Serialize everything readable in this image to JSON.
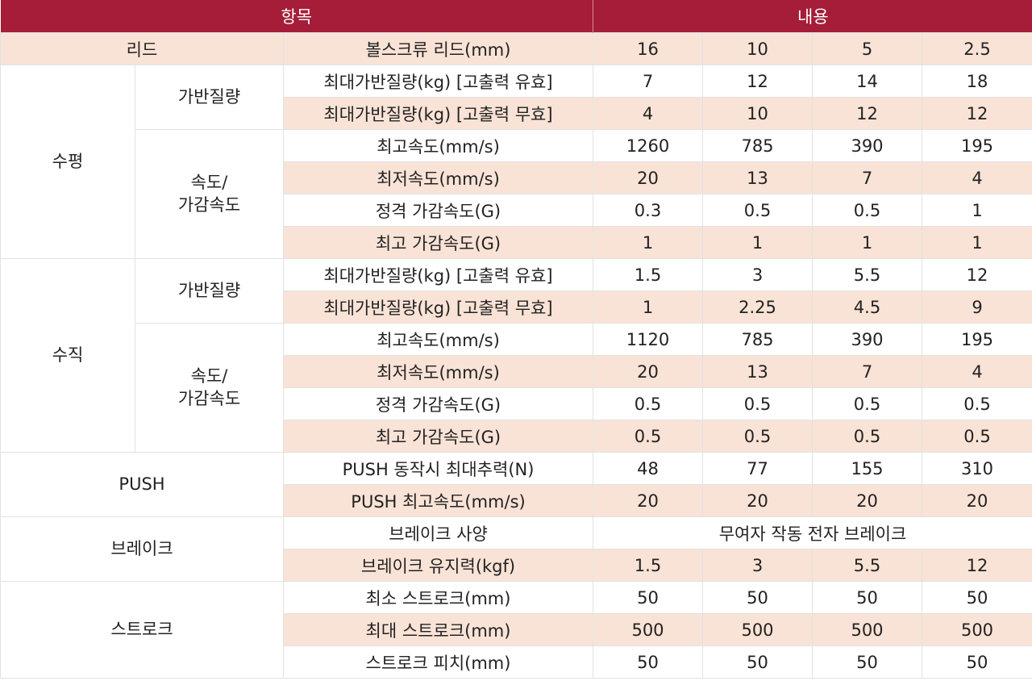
{
  "colors": {
    "header_bg": "#a51d38",
    "header_text": "#ffffff",
    "shaded_row": "#f9e3d6",
    "plain_row": "#ffffff",
    "grid_line": "#e2e2e2"
  },
  "header": {
    "item": "항목",
    "content": "내용"
  },
  "lead": {
    "group": "리드",
    "label": "볼스크류 리드(mm)",
    "values": [
      "16",
      "10",
      "5",
      "2.5"
    ]
  },
  "horizontal": {
    "group": "수평",
    "payload": {
      "label": "가반질량",
      "rows": [
        {
          "label": "최대가반질량(kg) [고출력 유효]",
          "values": [
            "7",
            "12",
            "14",
            "18"
          ]
        },
        {
          "label": "최대가반질량(kg) [고출력 무효]",
          "values": [
            "4",
            "10",
            "12",
            "12"
          ]
        }
      ]
    },
    "speed": {
      "label_line1": "속도/",
      "label_line2": "가감속도",
      "rows": [
        {
          "label": "최고속도(mm/s)",
          "values": [
            "1260",
            "785",
            "390",
            "195"
          ]
        },
        {
          "label": "최저속도(mm/s)",
          "values": [
            "20",
            "13",
            "7",
            "4"
          ]
        },
        {
          "label": "정격 가감속도(G)",
          "values": [
            "0.3",
            "0.5",
            "0.5",
            "1"
          ]
        },
        {
          "label": "최고 가감속도(G)",
          "values": [
            "1",
            "1",
            "1",
            "1"
          ]
        }
      ]
    }
  },
  "vertical": {
    "group": "수직",
    "payload": {
      "label": "가반질량",
      "rows": [
        {
          "label": "최대가반질량(kg) [고출력 유효]",
          "values": [
            "1.5",
            "3",
            "5.5",
            "12"
          ]
        },
        {
          "label": "최대가반질량(kg) [고출력 무효]",
          "values": [
            "1",
            "2.25",
            "4.5",
            "9"
          ]
        }
      ]
    },
    "speed": {
      "label_line1": "속도/",
      "label_line2": "가감속도",
      "rows": [
        {
          "label": "최고속도(mm/s)",
          "values": [
            "1120",
            "785",
            "390",
            "195"
          ]
        },
        {
          "label": "최저속도(mm/s)",
          "values": [
            "20",
            "13",
            "7",
            "4"
          ]
        },
        {
          "label": "정격 가감속도(G)",
          "values": [
            "0.5",
            "0.5",
            "0.5",
            "0.5"
          ]
        },
        {
          "label": "최고 가감속도(G)",
          "values": [
            "0.5",
            "0.5",
            "0.5",
            "0.5"
          ]
        }
      ]
    }
  },
  "push": {
    "group": "PUSH",
    "rows": [
      {
        "label": "PUSH 동작시 최대추력(N)",
        "values": [
          "48",
          "77",
          "155",
          "310"
        ]
      },
      {
        "label": "PUSH 최고속도(mm/s)",
        "values": [
          "20",
          "20",
          "20",
          "20"
        ]
      }
    ]
  },
  "brake": {
    "group": "브레이크",
    "spec_label": "브레이크 사양",
    "spec_value": "무여자 작동 전자 브레이크",
    "holding": {
      "label": "브레이크 유지력(kgf)",
      "values": [
        "1.5",
        "3",
        "5.5",
        "12"
      ]
    }
  },
  "stroke": {
    "group": "스트로크",
    "rows": [
      {
        "label": "최소 스트로크(mm)",
        "values": [
          "50",
          "50",
          "50",
          "50"
        ]
      },
      {
        "label": "최대 스트로크(mm)",
        "values": [
          "500",
          "500",
          "500",
          "500"
        ]
      },
      {
        "label": "스트로크 피치(mm)",
        "values": [
          "50",
          "50",
          "50",
          "50"
        ]
      }
    ]
  }
}
